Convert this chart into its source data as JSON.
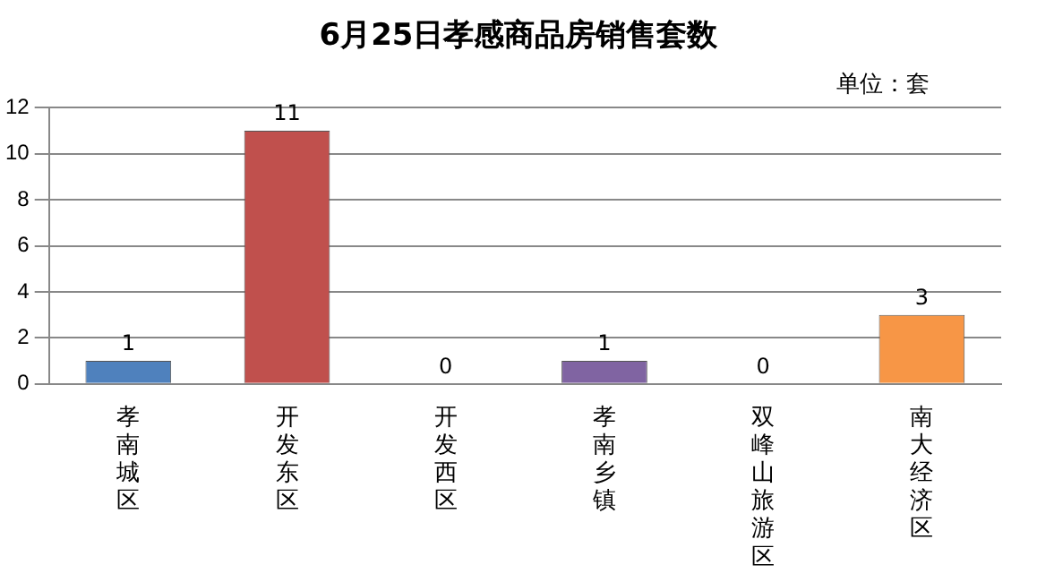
{
  "chart_data": {
    "type": "bar",
    "title": "6月25日孝感商品房销售套数",
    "annotations": [
      "单位：套"
    ],
    "categories": [
      "孝南城区",
      "开发东区",
      "开发西区",
      "孝南乡镇",
      "双峰山旅游区",
      "南大经济区"
    ],
    "values": [
      1,
      11,
      0,
      1,
      0,
      3
    ],
    "colors": [
      "#4f81bd",
      "#c0504d",
      "#9bbb59",
      "#8064a2",
      "#4bacc6",
      "#f79646"
    ],
    "ylim": [
      0,
      12
    ],
    "yticks": [
      0,
      2,
      4,
      6,
      8,
      10,
      12
    ],
    "grid": "y",
    "legend": false,
    "data_labels": true
  }
}
